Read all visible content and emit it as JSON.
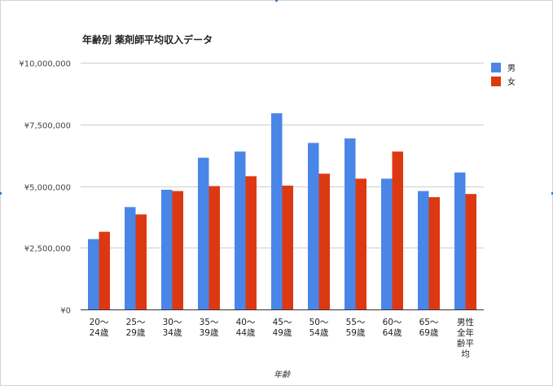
{
  "chart_data": {
    "type": "bar",
    "title": "年齢別 薬剤師平均収入データ",
    "xlabel": "年齢",
    "ylabel": "",
    "ylim": [
      0,
      10000000
    ],
    "yticks": [
      {
        "value": 0,
        "label": "¥0"
      },
      {
        "value": 2500000,
        "label": "¥2,500,000"
      },
      {
        "value": 5000000,
        "label": "¥5,000,000"
      },
      {
        "value": 7500000,
        "label": "¥7,500,000"
      },
      {
        "value": 10000000,
        "label": "¥10,000,000"
      }
    ],
    "categories": [
      [
        "20～",
        "24歳"
      ],
      [
        "25～",
        "29歳"
      ],
      [
        "30～",
        "34歳"
      ],
      [
        "35～",
        "39歳"
      ],
      [
        "40～",
        "44歳"
      ],
      [
        "45～",
        "49歳"
      ],
      [
        "50～",
        "54歳"
      ],
      [
        "55～",
        "59歳"
      ],
      [
        "60～",
        "64歳"
      ],
      [
        "65～",
        "69歳"
      ],
      [
        "男性",
        "全年",
        "齢平",
        "均"
      ]
    ],
    "series": [
      {
        "name": "男",
        "color": "#4a86e8",
        "values": [
          2850000,
          4150000,
          4850000,
          6150000,
          6400000,
          7950000,
          6750000,
          6930000,
          5300000,
          4800000,
          5550000
        ]
      },
      {
        "name": "女",
        "color": "#dc3912",
        "values": [
          3150000,
          3850000,
          4800000,
          5000000,
          5400000,
          5020000,
          5500000,
          5300000,
          6400000,
          4550000,
          4680000
        ]
      }
    ],
    "grid": true,
    "legend": "right"
  }
}
